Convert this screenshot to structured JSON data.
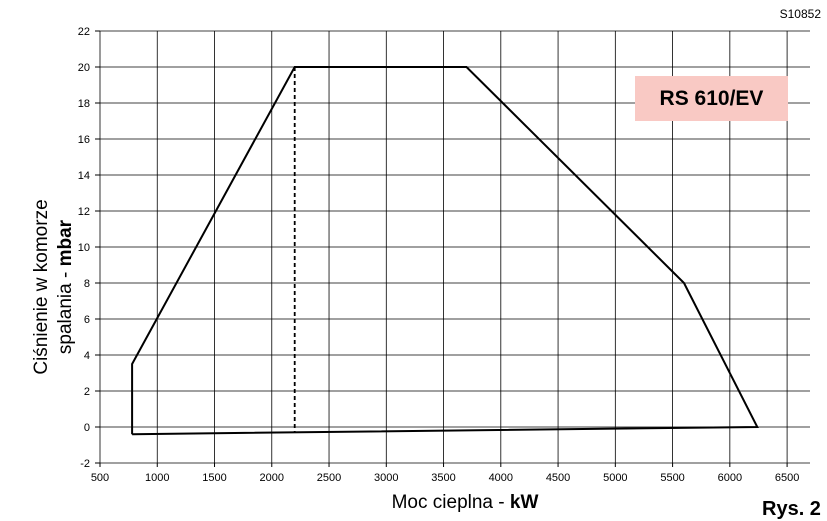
{
  "figure_code": "S10852",
  "figure_label": "Rys. 2",
  "model_label": "RS 610/EV",
  "axis": {
    "ylabel_line1": "Ciśnienie w komorze",
    "ylabel_line2_pre": "spalania - ",
    "ylabel_line2_unit": "mbar",
    "xlabel_pre": "Moc cieplna - ",
    "xlabel_unit": "kW"
  },
  "chart_data": {
    "type": "line",
    "xlabel": "Moc cieplna - kW",
    "ylabel": "Ciśnienie w komorze spalania - mbar",
    "xlim": [
      500,
      6700
    ],
    "ylim": [
      -2,
      22
    ],
    "xticks": [
      500,
      1000,
      1500,
      2000,
      2500,
      3000,
      3500,
      4000,
      4500,
      5000,
      5500,
      6000,
      6500
    ],
    "yticks": [
      -2,
      0,
      2,
      4,
      6,
      8,
      10,
      12,
      14,
      16,
      18,
      20,
      22
    ],
    "grid": true,
    "series": [
      {
        "style": "solid",
        "x": [
          780,
          780,
          2200,
          3700,
          5600,
          6240,
          780
        ],
        "y": [
          -0.4,
          3.5,
          20,
          20,
          8,
          0,
          -0.4
        ]
      },
      {
        "style": "dashed",
        "x": [
          2200,
          2200
        ],
        "y": [
          20,
          -0.3
        ]
      }
    ]
  }
}
